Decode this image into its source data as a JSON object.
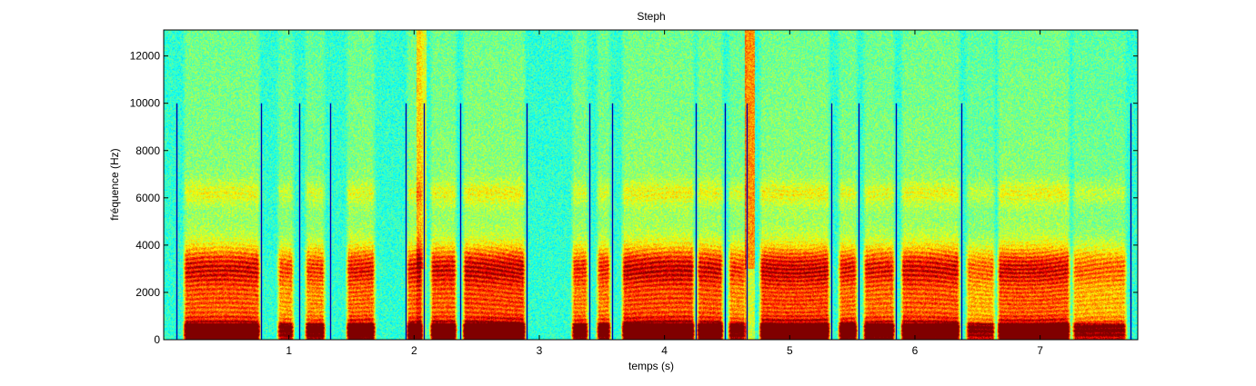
{
  "chart_data": {
    "type": "heatmap",
    "title": "Steph",
    "xlabel": "temps (s)",
    "ylabel": "fréquence (Hz)",
    "xlim": [
      0,
      7.78
    ],
    "ylim": [
      0,
      13100
    ],
    "x_ticks": [
      {
        "value": 1,
        "label": "1"
      },
      {
        "value": 2,
        "label": "2"
      },
      {
        "value": 3,
        "label": "3"
      },
      {
        "value": 4,
        "label": "4"
      },
      {
        "value": 5,
        "label": "5"
      },
      {
        "value": 6,
        "label": "6"
      },
      {
        "value": 7,
        "label": "7"
      }
    ],
    "y_ticks": [
      {
        "value": 0,
        "label": "0"
      },
      {
        "value": 2000,
        "label": "2000"
      },
      {
        "value": 4000,
        "label": "4000"
      },
      {
        "value": 6000,
        "label": "6000"
      },
      {
        "value": 8000,
        "label": "8000"
      },
      {
        "value": 10000,
        "label": "10000"
      },
      {
        "value": 12000,
        "label": "12000"
      }
    ],
    "colormap": "jet",
    "grid": false,
    "segment_boundaries": {
      "color": "#0000aa",
      "ymax": 10000,
      "times": [
        0.1,
        0.78,
        1.08,
        1.33,
        1.93,
        2.08,
        2.37,
        2.9,
        3.4,
        3.58,
        4.25,
        4.48,
        4.66,
        5.33,
        5.55,
        5.85,
        6.37,
        7.72
      ]
    },
    "voiced_segments": [
      {
        "start": 0.15,
        "end": 0.78,
        "strength": 0.95
      },
      {
        "start": 0.9,
        "end": 1.05,
        "strength": 0.75
      },
      {
        "start": 1.12,
        "end": 1.3,
        "strength": 0.8
      },
      {
        "start": 1.45,
        "end": 1.7,
        "strength": 0.9
      },
      {
        "start": 1.93,
        "end": 2.08,
        "strength": 0.9
      },
      {
        "start": 2.12,
        "end": 2.35,
        "strength": 0.95
      },
      {
        "start": 2.38,
        "end": 2.9,
        "strength": 1.0
      },
      {
        "start": 3.25,
        "end": 3.4,
        "strength": 0.85
      },
      {
        "start": 3.45,
        "end": 3.58,
        "strength": 0.85
      },
      {
        "start": 3.65,
        "end": 4.25,
        "strength": 1.0
      },
      {
        "start": 4.25,
        "end": 4.48,
        "strength": 0.95
      },
      {
        "start": 4.5,
        "end": 4.66,
        "strength": 0.8
      },
      {
        "start": 4.75,
        "end": 5.33,
        "strength": 1.0
      },
      {
        "start": 5.38,
        "end": 5.55,
        "strength": 0.9
      },
      {
        "start": 5.58,
        "end": 5.85,
        "strength": 0.9
      },
      {
        "start": 5.88,
        "end": 6.37,
        "strength": 0.95
      },
      {
        "start": 6.4,
        "end": 6.65,
        "strength": 0.7
      },
      {
        "start": 6.65,
        "end": 7.25,
        "strength": 0.95
      },
      {
        "start": 7.25,
        "end": 7.7,
        "strength": 0.7
      }
    ],
    "fricative_segments": [
      {
        "start": 4.64,
        "end": 4.72,
        "strength": 0.9
      },
      {
        "start": 2.02,
        "end": 2.1,
        "strength": 0.5
      }
    ],
    "formant_bands_hz": [
      {
        "center": 3000,
        "width": 900,
        "level": 0.45
      },
      {
        "center": 400,
        "width": 500,
        "level": 0.55
      },
      {
        "center": 1500,
        "width": 800,
        "level": 0.25
      },
      {
        "center": 6200,
        "width": 500,
        "level": 0.12
      }
    ]
  }
}
